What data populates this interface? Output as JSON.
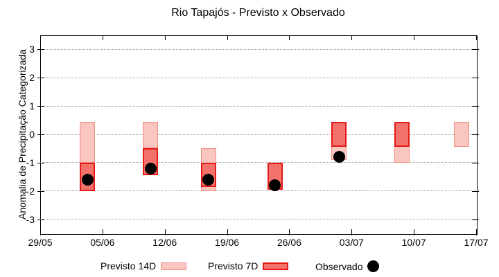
{
  "chart_data": {
    "type": "bar",
    "title": "Rio Tapajós - Previsto x Observado",
    "ylabel": "Anomalia de Precipitação Categorizada",
    "ylim": [
      -3.5,
      3.5
    ],
    "yticks": [
      3,
      2,
      1,
      0,
      -1,
      -2,
      -3
    ],
    "xtick_labels": [
      "29/05",
      "05/06",
      "12/06",
      "19/06",
      "26/06",
      "03/07",
      "10/07",
      "17/07"
    ],
    "xtick_interval_days": 7,
    "x_span_days": 49,
    "grid": "horizontal-dotted",
    "legend_position": "bottom",
    "legend": [
      {
        "label": "Previsto 14D",
        "type": "box",
        "fill": "#f9c6c0",
        "border": "#ef8e84"
      },
      {
        "label": "Previsto 7D",
        "type": "box",
        "fill": "#f3726b",
        "border": "#e41a16"
      },
      {
        "label": "Observado",
        "type": "dot",
        "fill": "#000000"
      }
    ],
    "groups": [
      {
        "date": "03/06",
        "day_offset": 5.3,
        "previsto_14d": [
          0.45,
          -1.0
        ],
        "previsto_7d": [
          -1.0,
          -2.0
        ],
        "observado": -1.6
      },
      {
        "date": "10/06",
        "day_offset": 12.4,
        "previsto_14d": [
          0.45,
          -0.5
        ],
        "previsto_7d": [
          -0.5,
          -1.45
        ],
        "observado": -1.2
      },
      {
        "date": "17/06",
        "day_offset": 18.9,
        "previsto_14d": [
          -0.5,
          -2.0
        ],
        "previsto_7d": [
          -1.0,
          -1.85
        ],
        "observado": -1.6
      },
      {
        "date": "24/06",
        "day_offset": 26.4,
        "previsto_14d": null,
        "previsto_7d": [
          -1.0,
          -1.95
        ],
        "observado": -1.8
      },
      {
        "date": "01/07",
        "day_offset": 33.6,
        "previsto_14d": [
          0.45,
          -0.9
        ],
        "previsto_7d": [
          0.45,
          -0.45
        ],
        "observado": -0.8
      },
      {
        "date": "08/07",
        "day_offset": 40.7,
        "previsto_14d": [
          0.45,
          -1.0
        ],
        "previsto_7d": [
          0.45,
          -0.45
        ],
        "observado": null
      },
      {
        "date": "15/07",
        "day_offset": 47.4,
        "previsto_14d": [
          0.45,
          -0.45
        ],
        "previsto_7d": null,
        "observado": null
      }
    ],
    "colors": {
      "previsto_14d_fill": "#f9c6c0",
      "previsto_14d_border": "#ef8e84",
      "previsto_7d_fill": "#f3726b",
      "previsto_7d_border": "#e41a16",
      "observado": "#000000",
      "grid": "#999999",
      "axis": "#000000"
    }
  }
}
